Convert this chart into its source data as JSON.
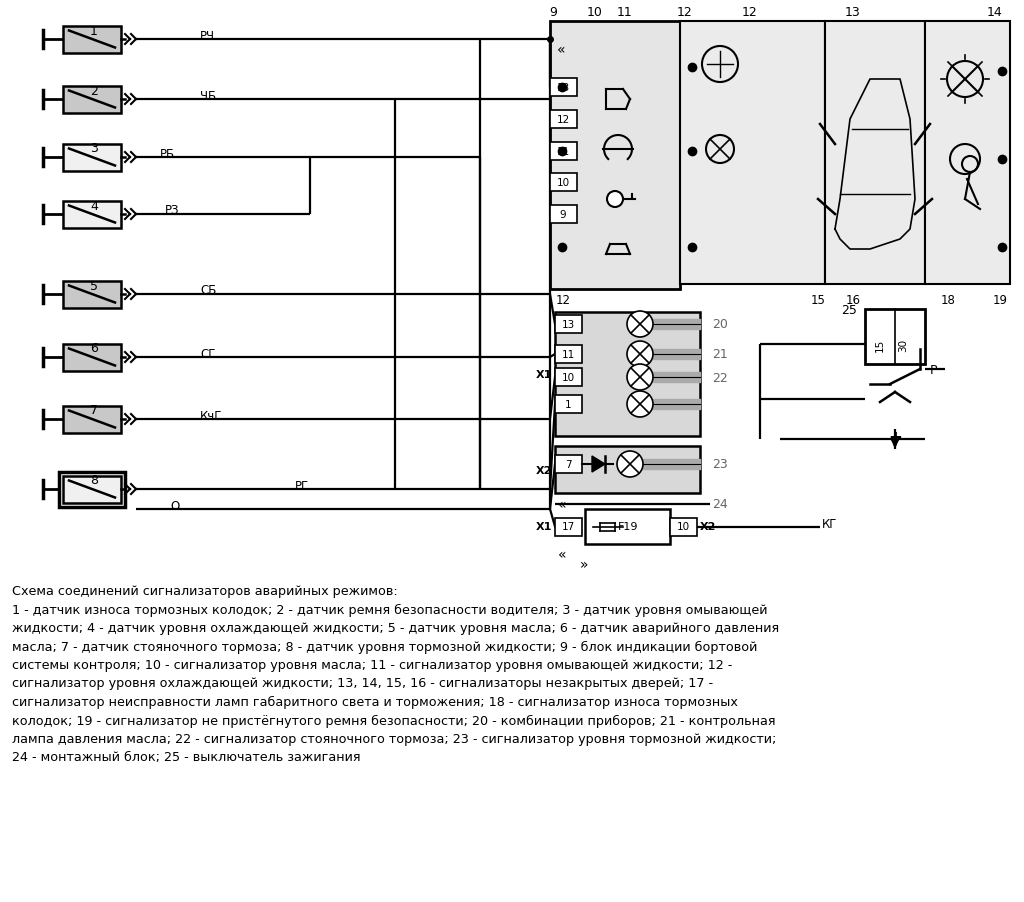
{
  "description_lines": [
    "Схема соединений сигнализаторов аварийных режимов:",
    "1 - датчик износа тормозных колодок; 2 - датчик ремня безопасности водителя; 3 - датчик уровня омывающей",
    "жидкости; 4 - датчик уровня охлаждающей жидкости; 5 - датчик уровня масла; 6 - датчик аварийного давления",
    "масла; 7 - датчик стояночного тормоза; 8 - датчик уровня тормозной жидкости; 9 - блок индикации бортовой",
    "системы контроля; 10 - сигнализатор уровня масла; 11 - сигнализатор уровня омывающей жидкости; 12 -",
    "сигнализатор уровня охлаждающей жидкости; 13, 14, 15, 16 - сигнализаторы незакрытых дверей; 17 -",
    "сигнализатор неисправности ламп габаритного света и торможения; 18 - сигнализатор износа тормозных",
    "колодок; 19 - сигнализатор не пристёгнутого ремня безопасности; 20 - комбинации приборов; 21 - контрольная",
    "лампа давления масла; 22 - сигнализатор стояночного тормоза; 23 - сигнализатор уровня тормозной жидкости;",
    "24 - монтажный блок; 25 - выключатель зажигания"
  ]
}
